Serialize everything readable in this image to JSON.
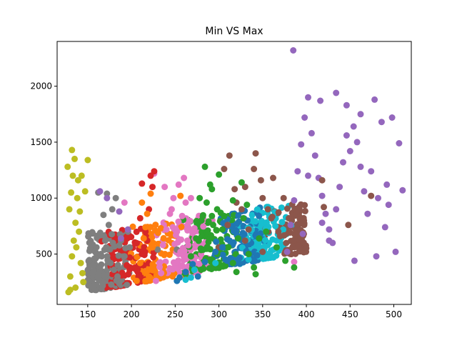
{
  "chart_data": {
    "type": "scatter",
    "title": "Min VS Max",
    "xlabel": "",
    "ylabel": "",
    "xlim": [
      115,
      520
    ],
    "ylim": [
      50,
      2400
    ],
    "xticks": [
      150,
      200,
      250,
      300,
      350,
      400,
      450,
      500
    ],
    "yticks": [
      500,
      1000,
      1500,
      2000
    ],
    "grid": false,
    "legend": "none",
    "series": [
      {
        "color": "#bcbd22",
        "points": [
          [
            128,
            160
          ],
          [
            130,
            300
          ],
          [
            132,
            480
          ],
          [
            134,
            620
          ],
          [
            136,
            780
          ],
          [
            129,
            900
          ],
          [
            131,
            1050
          ],
          [
            133,
            1200
          ],
          [
            135,
            1350
          ],
          [
            127,
            1280
          ],
          [
            138,
            1000
          ],
          [
            140,
            700
          ],
          [
            142,
            420
          ],
          [
            145,
            250
          ],
          [
            139,
            1160
          ],
          [
            137,
            560
          ],
          [
            132,
            1430
          ],
          [
            141,
            880
          ],
          [
            144,
            330
          ],
          [
            130,
            180
          ],
          [
            147,
            1060
          ],
          [
            143,
            1200
          ],
          [
            136,
            200
          ],
          [
            150,
            1340
          ]
        ]
      },
      {
        "color": "#7f7f7f",
        "points": [
          [
            158,
            180
          ],
          [
            162,
            320
          ],
          [
            166,
            480
          ],
          [
            170,
            620
          ],
          [
            174,
            760
          ],
          [
            178,
            900
          ],
          [
            182,
            1000
          ],
          [
            160,
            560
          ],
          [
            168,
            850
          ],
          [
            176,
            420
          ],
          [
            184,
            300
          ],
          [
            188,
            620
          ],
          [
            192,
            480
          ],
          [
            196,
            700
          ],
          [
            186,
            240
          ],
          [
            172,
            1040
          ],
          [
            164,
            680
          ],
          [
            180,
            360
          ],
          [
            156,
            400
          ],
          [
            198,
            560
          ],
          [
            230,
            540
          ],
          [
            252,
            540
          ],
          [
            162,
            1050
          ]
        ]
      },
      {
        "color": "#e377c2",
        "points": [
          [
            228,
            260
          ],
          [
            232,
            420
          ],
          [
            236,
            580
          ],
          [
            240,
            720
          ],
          [
            244,
            860
          ],
          [
            248,
            1000
          ],
          [
            252,
            700
          ],
          [
            256,
            520
          ],
          [
            260,
            380
          ],
          [
            264,
            620
          ],
          [
            238,
            1100
          ],
          [
            226,
            1220
          ],
          [
            246,
            900
          ],
          [
            258,
            840
          ],
          [
            262,
            960
          ],
          [
            234,
            330
          ],
          [
            254,
            1120
          ],
          [
            268,
            1000
          ],
          [
            272,
            730
          ],
          [
            192,
            960
          ],
          [
            260,
            1180
          ],
          [
            386,
            430
          ]
        ]
      },
      {
        "color": "#d62728",
        "points": [
          [
            208,
            300
          ],
          [
            212,
            500
          ],
          [
            216,
            700
          ],
          [
            220,
            900
          ],
          [
            224,
            1100
          ],
          [
            210,
            820
          ],
          [
            214,
            400
          ],
          [
            218,
            620
          ],
          [
            222,
            1200
          ],
          [
            226,
            1240
          ],
          [
            212,
            1130
          ]
        ]
      },
      {
        "color": "#ff7f0e",
        "points": [
          [
            206,
            260
          ],
          [
            210,
            420
          ],
          [
            214,
            640
          ],
          [
            218,
            860
          ],
          [
            222,
            1040
          ],
          [
            212,
            960
          ],
          [
            216,
            740
          ],
          [
            224,
            560
          ],
          [
            220,
            300
          ],
          [
            262,
            300
          ],
          [
            256,
            1020
          ]
        ]
      },
      {
        "color": "#9467bd",
        "points": [
          [
            378,
            520
          ],
          [
            382,
            760
          ],
          [
            386,
            980
          ],
          [
            390,
            1240
          ],
          [
            394,
            1480
          ],
          [
            398,
            1720
          ],
          [
            402,
            1900
          ],
          [
            406,
            1580
          ],
          [
            410,
            1380
          ],
          [
            414,
            1180
          ],
          [
            418,
            1020
          ],
          [
            422,
            860
          ],
          [
            426,
            720
          ],
          [
            430,
            600
          ],
          [
            434,
            900
          ],
          [
            438,
            1100
          ],
          [
            442,
            1320
          ],
          [
            446,
            1560
          ],
          [
            450,
            1420
          ],
          [
            454,
            1640
          ],
          [
            458,
            1500
          ],
          [
            462,
            1280
          ],
          [
            466,
            1060
          ],
          [
            470,
            860
          ],
          [
            474,
            1240
          ],
          [
            478,
            1880
          ],
          [
            482,
            1000
          ],
          [
            486,
            1680
          ],
          [
            490,
            740
          ],
          [
            494,
            940
          ],
          [
            498,
            1720
          ],
          [
            502,
            520
          ],
          [
            506,
            1490
          ],
          [
            510,
            1070
          ],
          [
            446,
            1830
          ],
          [
            462,
            1750
          ],
          [
            434,
            1940
          ],
          [
            416,
            1870
          ],
          [
            385,
            2320
          ],
          [
            492,
            1120
          ],
          [
            480,
            480
          ],
          [
            455,
            440
          ],
          [
            172,
            1000
          ],
          [
            186,
            880
          ],
          [
            196,
            720
          ],
          [
            188,
            640
          ],
          [
            164,
            1060
          ],
          [
            402,
            1200
          ],
          [
            418,
            780
          ],
          [
            426,
            620
          ],
          [
            396,
            680
          ]
        ]
      },
      {
        "color": "#8c564b",
        "points": [
          [
            300,
            560
          ],
          [
            310,
            760
          ],
          [
            320,
            960
          ],
          [
            330,
            1100
          ],
          [
            340,
            1260
          ],
          [
            350,
            1000
          ],
          [
            360,
            820
          ],
          [
            370,
            660
          ],
          [
            306,
            1260
          ],
          [
            312,
            1380
          ],
          [
            318,
            1080
          ],
          [
            326,
            900
          ],
          [
            334,
            720
          ],
          [
            342,
            1400
          ],
          [
            348,
            1160
          ],
          [
            356,
            900
          ],
          [
            362,
            1180
          ],
          [
            368,
            700
          ],
          [
            374,
            1000
          ],
          [
            380,
            820
          ],
          [
            350,
            520
          ],
          [
            330,
            620
          ],
          [
            420,
            920
          ],
          [
            448,
            760
          ],
          [
            474,
            1020
          ],
          [
            418,
            1160
          ]
        ]
      },
      {
        "color": "#2ca02c",
        "points": [
          [
            262,
            320
          ],
          [
            268,
            480
          ],
          [
            274,
            640
          ],
          [
            280,
            800
          ],
          [
            286,
            960
          ],
          [
            292,
            1080
          ],
          [
            298,
            900
          ],
          [
            304,
            720
          ],
          [
            310,
            560
          ],
          [
            316,
            420
          ],
          [
            322,
            640
          ],
          [
            328,
            820
          ],
          [
            334,
            500
          ],
          [
            340,
            380
          ],
          [
            346,
            640
          ],
          [
            278,
            1000
          ],
          [
            290,
            1120
          ],
          [
            300,
            1210
          ],
          [
            306,
            840
          ],
          [
            316,
            980
          ],
          [
            326,
            1140
          ],
          [
            332,
            940
          ],
          [
            354,
            700
          ],
          [
            366,
            560
          ],
          [
            376,
            440
          ],
          [
            386,
            380
          ],
          [
            284,
            1280
          ],
          [
            298,
            500
          ],
          [
            320,
            340
          ],
          [
            342,
            320
          ]
        ]
      },
      {
        "color": "#1f77b4",
        "points": [
          [
            255,
            290
          ],
          [
            262,
            340
          ],
          [
            270,
            410
          ],
          [
            284,
            430
          ],
          [
            296,
            520
          ],
          [
            252,
            260
          ],
          [
            276,
            300
          ],
          [
            304,
            560
          ]
        ]
      },
      {
        "color": "#17becf",
        "points": [
          [
            262,
            270
          ],
          [
            272,
            360
          ],
          [
            268,
            290
          ],
          [
            296,
            420
          ]
        ]
      }
    ],
    "band": {
      "colors": [
        "#7f7f7f",
        "#d62728",
        "#ff7f0e",
        "#e377c2",
        "#2ca02c",
        "#1f77b4",
        "#17becf",
        "#8c564b"
      ],
      "x_start": 150,
      "x_end": 400,
      "min_y_start": 160,
      "min_y_end": 520,
      "max_y_start": 700,
      "max_y_end": 980
    }
  }
}
